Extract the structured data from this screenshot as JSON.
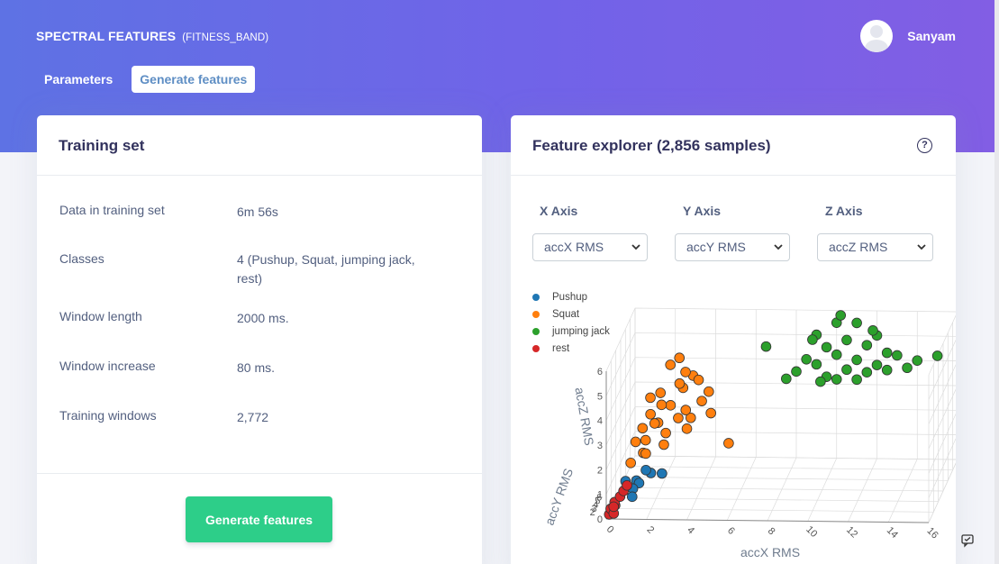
{
  "header": {
    "title": "SPECTRAL FEATURES",
    "subtitle": "(FITNESS_BAND)",
    "user_name": "Sanyam"
  },
  "tabs": [
    {
      "label": "Parameters",
      "active": false
    },
    {
      "label": "Generate features",
      "active": true
    }
  ],
  "training_set": {
    "title": "Training set",
    "rows": [
      {
        "label": "Data in training set",
        "value": "6m 56s"
      },
      {
        "label": "Classes",
        "value": "4 (Pushup, Squat, jumping jack, rest)"
      },
      {
        "label": "Window length",
        "value": "2000 ms."
      },
      {
        "label": "Window increase",
        "value": "80 ms."
      },
      {
        "label": "Training windows",
        "value": "2,772"
      }
    ],
    "button_label": "Generate features"
  },
  "feature_explorer": {
    "title": "Feature explorer (2,856 samples)",
    "help_icon": "question-circle-icon",
    "axes": [
      {
        "label": "X Axis",
        "selected": "accX RMS"
      },
      {
        "label": "Y Axis",
        "selected": "accY RMS"
      },
      {
        "label": "Z Axis",
        "selected": "accZ RMS"
      }
    ],
    "legend": [
      {
        "name": "Pushup",
        "color": "#1f77b4"
      },
      {
        "name": "Squat",
        "color": "#ff7f0e"
      },
      {
        "name": "jumping jack",
        "color": "#2ca02c"
      },
      {
        "name": "rest",
        "color": "#d62728"
      }
    ]
  },
  "chart_data": {
    "type": "scatter",
    "dimensions": 3,
    "xlabel": "accX RMS",
    "ylabel": "accY RMS",
    "zlabel": "accZ RMS",
    "x_ticks": [
      "0",
      "2",
      "4",
      "6",
      "8",
      "10",
      "12",
      "14",
      "16"
    ],
    "y_ticks": [
      "0",
      "2",
      "3",
      "4",
      "5",
      "6"
    ],
    "z_ticks": [
      "0",
      "1",
      "2",
      "3",
      "4",
      "5",
      "6"
    ],
    "xlim": [
      0,
      16
    ],
    "ylim": [
      0,
      6
    ],
    "zlim": [
      0,
      6
    ],
    "legend_position": "top-left",
    "series": [
      {
        "name": "Pushup",
        "color": "#1f77b4",
        "points": [
          [
            0.6,
            1.5,
            0.9
          ],
          [
            0.9,
            2.5,
            0.5
          ],
          [
            1.2,
            1.8,
            0.7
          ],
          [
            0.8,
            2.2,
            0.3
          ],
          [
            1.5,
            3.0,
            0.6
          ],
          [
            1.0,
            1.2,
            0.4
          ],
          [
            2.0,
            3.2,
            0.5
          ],
          [
            1.3,
            2.8,
            0.8
          ]
        ]
      },
      {
        "name": "Squat",
        "color": "#ff7f0e",
        "points": [
          [
            1,
            4,
            1.5
          ],
          [
            1.5,
            4.5,
            2
          ],
          [
            2,
            5,
            2.5
          ],
          [
            2.5,
            5.5,
            3
          ],
          [
            3,
            5,
            2
          ],
          [
            1,
            3.5,
            1.2
          ],
          [
            0.5,
            3,
            1
          ],
          [
            1.5,
            5,
            3
          ],
          [
            2,
            4,
            1.8
          ],
          [
            3,
            5.5,
            3.5
          ],
          [
            2.5,
            4.5,
            2.2
          ],
          [
            1.8,
            5.8,
            3.8
          ],
          [
            1,
            5,
            2.8
          ],
          [
            0.8,
            4.2,
            1.9
          ],
          [
            3.5,
            5.2,
            2.6
          ],
          [
            2.2,
            6,
            4
          ],
          [
            1.2,
            3.2,
            1.3
          ],
          [
            2.8,
            4.8,
            2.4
          ],
          [
            3.2,
            5.8,
            3.2
          ],
          [
            1.6,
            4.8,
            2.6
          ],
          [
            2.4,
            5.2,
            3.3
          ],
          [
            0.6,
            3.6,
            1.6
          ],
          [
            1.4,
            4.2,
            2.1
          ],
          [
            2.6,
            5.6,
            3.6
          ],
          [
            3.8,
            5.4,
            2.9
          ],
          [
            2,
            3.6,
            1.5
          ],
          [
            1.1,
            4.6,
            2.3
          ],
          [
            3,
            4.2,
            1.9
          ],
          [
            4,
            5,
            2.2
          ],
          [
            5,
            4.5,
            1.2
          ]
        ]
      },
      {
        "name": "jumping jack",
        "color": "#2ca02c",
        "points": [
          [
            9,
            6,
            5
          ],
          [
            10,
            6,
            5.5
          ],
          [
            11,
            6,
            5.5
          ],
          [
            12,
            6,
            5
          ],
          [
            10.5,
            6,
            4.8
          ],
          [
            9.5,
            6,
            4.5
          ],
          [
            11.5,
            6,
            4.6
          ],
          [
            8.5,
            6,
            4
          ],
          [
            12.5,
            6,
            4.3
          ],
          [
            10,
            6,
            4.2
          ],
          [
            11,
            6,
            4
          ],
          [
            9,
            6,
            3.8
          ],
          [
            12,
            6,
            3.8
          ],
          [
            13,
            6,
            4.2
          ],
          [
            8,
            6,
            3.5
          ],
          [
            10.5,
            6,
            3.6
          ],
          [
            11.5,
            6,
            3.5
          ],
          [
            9.5,
            6,
            3.3
          ],
          [
            12.5,
            6,
            3.6
          ],
          [
            14,
            6,
            4
          ],
          [
            7.5,
            6,
            3.2
          ],
          [
            10,
            6,
            3.2
          ],
          [
            11,
            6,
            3.2
          ],
          [
            13.5,
            6,
            3.7
          ],
          [
            6.5,
            6,
            4.5
          ],
          [
            15,
            6,
            4.2
          ],
          [
            8.8,
            6,
            4.8
          ],
          [
            11.8,
            6,
            5.2
          ],
          [
            10.2,
            6,
            5.8
          ],
          [
            9.2,
            6,
            3.1
          ]
        ]
      },
      {
        "name": "rest",
        "color": "#d62728",
        "points": [
          [
            0.1,
            0.2,
            0.1
          ],
          [
            0.2,
            0.4,
            0.2
          ],
          [
            0.3,
            0.6,
            0.3
          ],
          [
            0.2,
            0.9,
            0.3
          ],
          [
            0.4,
            1.2,
            0.4
          ],
          [
            0.1,
            0.5,
            0.2
          ],
          [
            0.3,
            0.3,
            0.1
          ],
          [
            0.5,
            1.5,
            0.5
          ],
          [
            0.2,
            0.7,
            0.2
          ],
          [
            0.6,
            1.8,
            0.6
          ]
        ]
      }
    ]
  }
}
